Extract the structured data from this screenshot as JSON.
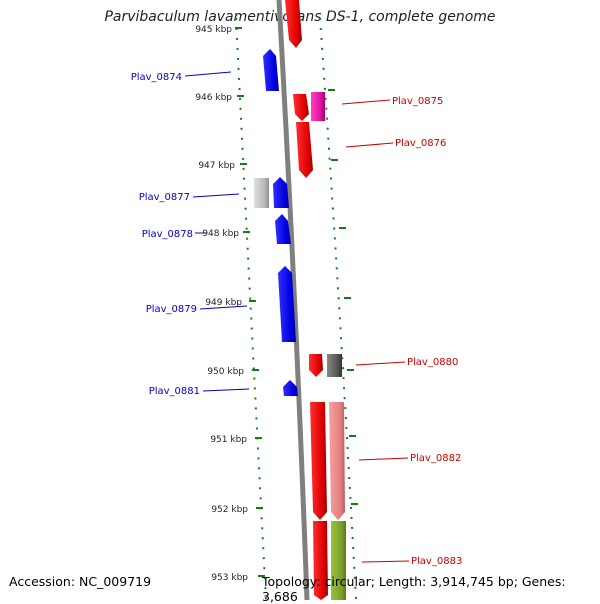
{
  "title": "Parvibaculum lavamentivorans DS-1, complete genome",
  "footer": {
    "accession": "Accession: NC_009719",
    "topology": "Topology: circular; Length: 3,914,745 bp; Genes: 3,686"
  },
  "colors": {
    "background": "#ffffff",
    "backbone": "#7f7f7f",
    "minus_strand_label": "#0000cc",
    "plus_strand_label": "#cc0000",
    "tick": "#1a7a1a",
    "ruler_label": "#222222"
  },
  "ruler_labels": [
    "945 kbp",
    "946 kbp",
    "947 kbp",
    "948 kbp",
    "949 kbp",
    "950 kbp",
    "951 kbp",
    "952 kbp",
    "953 kbp"
  ],
  "gene_labels": {
    "left": [
      "Plav_0874",
      "Plav_0877",
      "Plav_0878",
      "Plav_0879",
      "Plav_0881"
    ],
    "right": [
      "Plav_0875",
      "Plav_0876",
      "Plav_0880",
      "Plav_0882",
      "Plav_0883"
    ]
  },
  "features": [
    {
      "name": "Plav_0874",
      "strand": "-",
      "color": "blue"
    },
    {
      "name": "Plav_0877",
      "strand": "-",
      "color": "blue"
    },
    {
      "name": "Plav_0878",
      "strand": "-",
      "color": "blue"
    },
    {
      "name": "Plav_0879",
      "strand": "-",
      "color": "blue"
    },
    {
      "name": "Plav_0881",
      "strand": "-",
      "color": "blue"
    },
    {
      "name": "Plav_0875",
      "strand": "+",
      "color": "red"
    },
    {
      "name": "Plav_0876",
      "strand": "+",
      "color": "red"
    },
    {
      "name": "Plav_0880",
      "strand": "+",
      "color": "red"
    },
    {
      "name": "Plav_0882",
      "strand": "+",
      "color": "red"
    },
    {
      "name": "Plav_0883",
      "strand": "+",
      "color": "red"
    }
  ]
}
